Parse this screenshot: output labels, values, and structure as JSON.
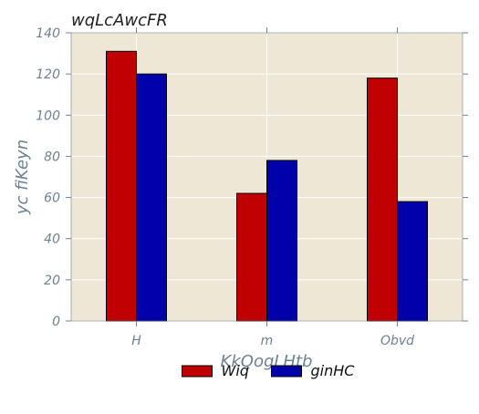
{
  "chart_data": {
    "type": "bar",
    "title": "wqLcAwcFR",
    "xlabel": "KkQogLHtb",
    "ylabel": "yc fiKeyn",
    "categories": [
      "H",
      "m",
      "Obvd"
    ],
    "series": [
      {
        "name": "Wiq",
        "values": [
          131,
          62,
          118
        ],
        "color": "#c00000"
      },
      {
        "name": "ginHC",
        "values": [
          120,
          78,
          58
        ],
        "color": "#0000aa"
      }
    ],
    "ylim": [
      0,
      140
    ],
    "yticks": [
      0,
      20,
      40,
      60,
      80,
      100,
      120,
      140
    ],
    "grid": true,
    "plot_background": "#efe7d5",
    "grid_color": "#ffffff",
    "legend_position": "bottom-center"
  }
}
